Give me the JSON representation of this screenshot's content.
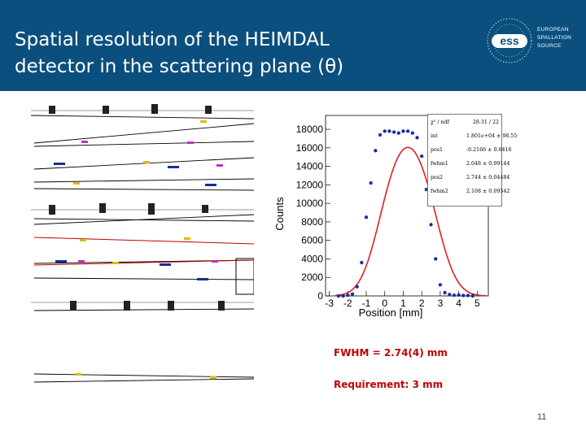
{
  "slide": {
    "title_line1": "Spatial resolution of the HEIMDAL",
    "title_line2": "detector in the scattering plane (θ)",
    "page_number": "11",
    "notes": {
      "fwhm": "FWHM = 2.74(4) mm",
      "requirement": "Requirement: 3 mm"
    }
  },
  "logo": {
    "mark": "ess",
    "line1": "EUROPEAN",
    "line2": "SPALLATION",
    "line3": "SOURCE"
  },
  "colors": {
    "header_bg": "#0b4f7e",
    "fit_curve": "#e02020",
    "data_points": "#1a2aa0",
    "note_text": "#c00000"
  },
  "stats_box": [
    {
      "key": "χ² / ndf",
      "value": "28.31 / 22"
    },
    {
      "key": "int",
      "value": "1.801e+04  ±  98.55"
    },
    {
      "key": "pos1",
      "value": "-0.2166  ±  0.0416"
    },
    {
      "key": "fwhm1",
      "value": "2.048  ±  0.09144"
    },
    {
      "key": "pos2",
      "value": "2.744  ±  0.04484"
    },
    {
      "key": "fwhm2",
      "value": "2.108  ±  0.09542"
    }
  ],
  "chart_data": {
    "type": "scatter",
    "title": "",
    "xlabel": "Position [mm]",
    "ylabel": "Counts",
    "xlim": [
      -3.2,
      5.6
    ],
    "ylim": [
      0,
      19500
    ],
    "xticks": [
      -3,
      -2,
      -1,
      0,
      1,
      2,
      3,
      4,
      5
    ],
    "yticks": [
      0,
      2000,
      4000,
      6000,
      8000,
      10000,
      12000,
      14000,
      16000,
      18000
    ],
    "series": [
      {
        "kind": "points",
        "x": [
          -2.5,
          -2.25,
          -2.0,
          -1.75,
          -1.5,
          -1.25,
          -1.0,
          -0.75,
          -0.5,
          -0.25,
          0.0,
          0.25,
          0.5,
          0.75,
          1.0,
          1.25,
          1.5,
          1.75,
          2.0,
          2.25,
          2.5,
          2.75,
          3.0,
          3.25,
          3.5,
          3.75,
          4.0,
          4.25,
          4.5,
          4.75
        ],
        "y": [
          0,
          0,
          80,
          200,
          1000,
          3600,
          8500,
          12200,
          15700,
          17400,
          17800,
          17800,
          17700,
          17600,
          17800,
          17800,
          17600,
          17100,
          15100,
          11500,
          7700,
          4000,
          1200,
          350,
          150,
          80,
          100,
          50,
          50,
          0
        ]
      },
      {
        "kind": "fit",
        "function": "sum of two Gaussians",
        "int": 18010,
        "pos1": -0.2166,
        "fwhm1": 2.048,
        "pos2": 2.744,
        "fwhm2": 2.108,
        "plateau": 17700
      }
    ]
  }
}
